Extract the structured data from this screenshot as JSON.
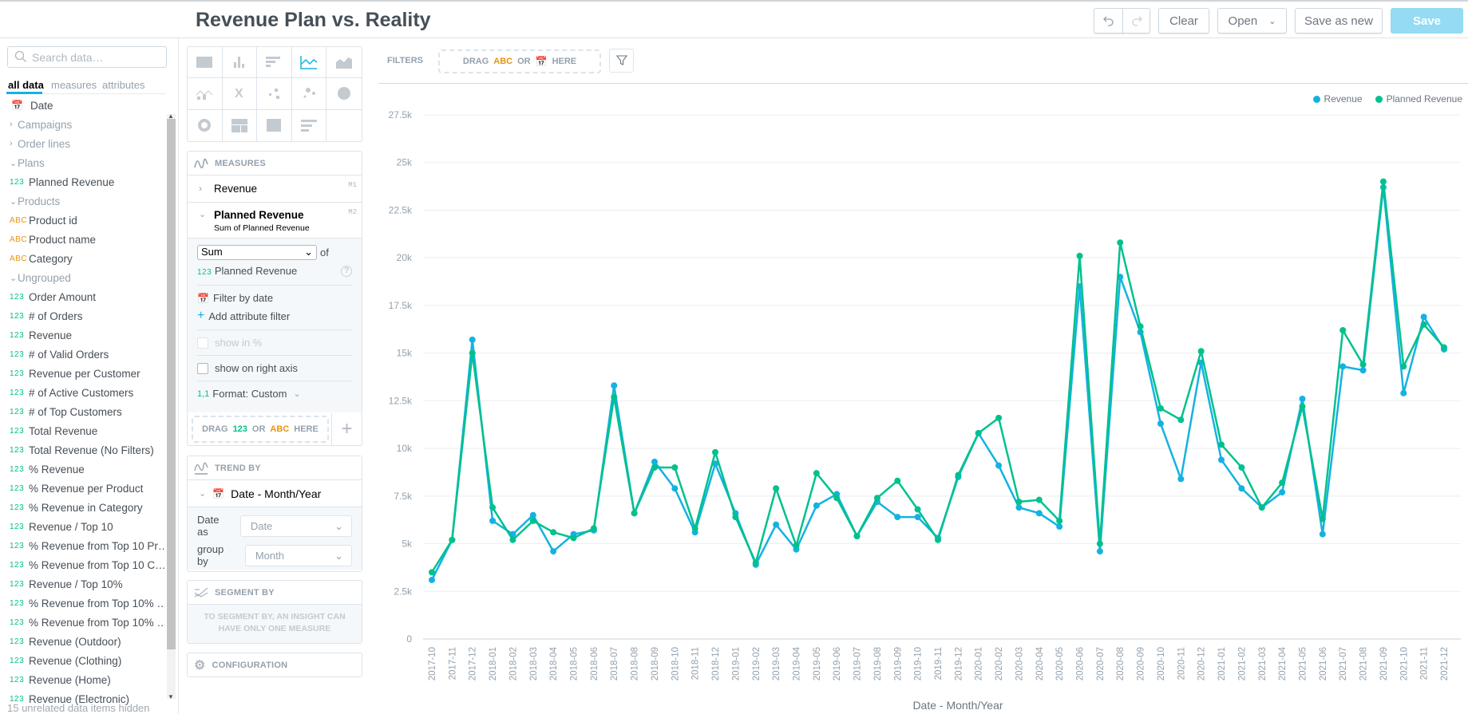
{
  "header": {
    "title": "Revenue Plan vs. Reality",
    "undo_icon": "undo-icon",
    "redo_icon": "redo-icon",
    "clear": "Clear",
    "open": "Open",
    "save_as_new": "Save as new",
    "save": "Save"
  },
  "catalog": {
    "search_placeholder": "Search data…",
    "tabs": [
      "all data",
      "measures",
      "attributes"
    ],
    "items": [
      {
        "type": "date",
        "label": "Date"
      },
      {
        "type": "group-collapsed",
        "label": "Campaigns"
      },
      {
        "type": "group-collapsed",
        "label": "Order lines"
      },
      {
        "type": "group",
        "label": "Plans"
      },
      {
        "type": "num",
        "label": "Planned Revenue"
      },
      {
        "type": "group",
        "label": "Products"
      },
      {
        "type": "abc",
        "label": "Product id"
      },
      {
        "type": "abc",
        "label": "Product name"
      },
      {
        "type": "abc",
        "label": "Category"
      },
      {
        "type": "group",
        "label": "Ungrouped"
      },
      {
        "type": "num",
        "label": "Order Amount"
      },
      {
        "type": "num",
        "label": "# of Orders"
      },
      {
        "type": "num",
        "label": "Revenue"
      },
      {
        "type": "num",
        "label": "# of Valid Orders"
      },
      {
        "type": "num",
        "label": "Revenue per Customer"
      },
      {
        "type": "num",
        "label": "# of Active Customers"
      },
      {
        "type": "num",
        "label": "# of Top Customers"
      },
      {
        "type": "num",
        "label": "Total Revenue"
      },
      {
        "type": "num",
        "label": "Total Revenue (No Filters)"
      },
      {
        "type": "num",
        "label": "% Revenue"
      },
      {
        "type": "num",
        "label": "% Revenue per Product"
      },
      {
        "type": "num",
        "label": "% Revenue in Category"
      },
      {
        "type": "num",
        "label": "Revenue / Top 10"
      },
      {
        "type": "num",
        "label": "% Revenue from Top 10 Pr…"
      },
      {
        "type": "num",
        "label": "% Revenue from Top 10 C…"
      },
      {
        "type": "num",
        "label": "Revenue / Top 10%"
      },
      {
        "type": "num",
        "label": "% Revenue from Top 10% …"
      },
      {
        "type": "num",
        "label": "% Revenue from Top 10% …"
      },
      {
        "type": "num",
        "label": "Revenue (Outdoor)"
      },
      {
        "type": "num",
        "label": "Revenue (Clothing)"
      },
      {
        "type": "num",
        "label": "Revenue (Home)"
      },
      {
        "type": "num",
        "label": "Revenue (Electronic)"
      }
    ],
    "type_labels": {
      "num": "123",
      "abc": "ABC"
    },
    "hidden_note": "15 unrelated data items hidden"
  },
  "visualization_types": [
    "table",
    "column",
    "bar",
    "line",
    "area",
    "combo",
    "headline",
    "scatter",
    "bubble",
    "pie",
    "donut",
    "treemap",
    "heatmap",
    "bullet"
  ],
  "selected_visualization": "line",
  "measures": {
    "title": "MEASURES",
    "items": [
      {
        "label": "Revenue",
        "tag": "M1"
      },
      {
        "label": "Planned Revenue",
        "tag": "M2",
        "subtitle": "Sum of Planned Revenue"
      }
    ],
    "aggregation": "Sum",
    "of": "of",
    "source": "Planned Revenue",
    "filter_by_date": "Filter by date",
    "add_attribute_filter": "Add attribute filter",
    "show_in_percent": "show in %",
    "show_on_right_axis": "show on right axis",
    "format": "Format: Custom",
    "format_icon_label": "1,1",
    "drop": {
      "drag": "DRAG",
      "or": "OR",
      "here": "HERE",
      "num": "123",
      "abc": "ABC"
    }
  },
  "trend_by": {
    "title": "TREND BY",
    "item": "Date - Month/Year",
    "date_as_label": "Date as",
    "date_as": "Date",
    "group_by_label": "group by",
    "group_by": "Month"
  },
  "segment_by": {
    "title": "SEGMENT BY",
    "message": "TO SEGMENT BY, AN INSIGHT CAN HAVE ONLY ONE MEASURE"
  },
  "configuration": {
    "title": "CONFIGURATION"
  },
  "filters": {
    "label": "FILTERS",
    "drag": "DRAG",
    "abc": "ABC",
    "or": "OR",
    "here": "HERE"
  },
  "chart_data": {
    "type": "line",
    "xlabel": "Date - Month/Year",
    "ylabel": "",
    "ylim": [
      0,
      27500
    ],
    "yticks": [
      0,
      2500,
      5000,
      7500,
      10000,
      12500,
      15000,
      17500,
      20000,
      22500,
      25000,
      27500
    ],
    "ytick_labels": [
      "0",
      "2.5k",
      "5k",
      "7.5k",
      "10k",
      "12.5k",
      "15k",
      "17.5k",
      "20k",
      "22.5k",
      "25k",
      "27.5k"
    ],
    "grid": true,
    "legend": "top-right",
    "categories": [
      "2017-10",
      "2017-11",
      "2017-12",
      "2018-01",
      "2018-02",
      "2018-03",
      "2018-04",
      "2018-05",
      "2018-06",
      "2018-07",
      "2018-08",
      "2018-09",
      "2018-10",
      "2018-11",
      "2018-12",
      "2019-01",
      "2019-02",
      "2019-03",
      "2019-04",
      "2019-05",
      "2019-06",
      "2019-07",
      "2019-08",
      "2019-09",
      "2019-10",
      "2019-11",
      "2019-12",
      "2020-01",
      "2020-02",
      "2020-03",
      "2020-04",
      "2020-05",
      "2020-06",
      "2020-07",
      "2020-08",
      "2020-09",
      "2020-10",
      "2020-11",
      "2020-12",
      "2021-01",
      "2021-02",
      "2021-03",
      "2021-04",
      "2021-05",
      "2021-06",
      "2021-07",
      "2021-08",
      "2021-09",
      "2021-10",
      "2021-11",
      "2021-12"
    ],
    "series": [
      {
        "name": "Revenue",
        "color": "#14b2e2",
        "values": [
          3100,
          5200,
          15700,
          6200,
          5500,
          6500,
          4600,
          5500,
          5700,
          13300,
          6600,
          9300,
          7900,
          5600,
          9200,
          6600,
          3900,
          6000,
          4700,
          7000,
          7600,
          5400,
          7200,
          6400,
          6400,
          5300,
          8500,
          10800,
          9100,
          6900,
          6600,
          5900,
          18500,
          4600,
          19000,
          16100,
          11300,
          8400,
          14500,
          9400,
          7900,
          6900,
          7700,
          12600,
          5500,
          14300,
          14100,
          23700,
          12900,
          16900,
          15200
        ]
      },
      {
        "name": "Planned Revenue",
        "color": "#00c18d",
        "values": [
          3500,
          5200,
          15000,
          6900,
          5200,
          6200,
          5600,
          5300,
          5800,
          12700,
          6600,
          9000,
          9000,
          5800,
          9800,
          6400,
          4000,
          7900,
          4900,
          8700,
          7400,
          5400,
          7400,
          8300,
          6800,
          5200,
          8600,
          10800,
          11600,
          7200,
          7300,
          6200,
          20100,
          5000,
          20800,
          16400,
          12100,
          11500,
          15100,
          10200,
          9000,
          6900,
          8200,
          12200,
          6300,
          16200,
          14400,
          24000,
          14300,
          16500,
          15300
        ]
      }
    ]
  }
}
